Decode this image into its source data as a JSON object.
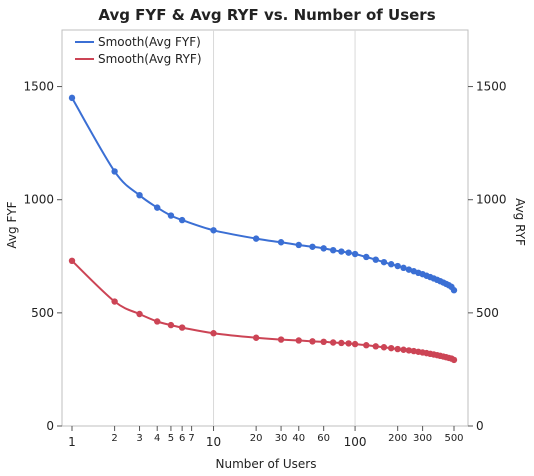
{
  "chart_data": {
    "type": "line",
    "title": "Avg FYF & Avg RYF vs. Number of Users",
    "xlabel": "Number of Users",
    "ylabel_left": "Avg FYF",
    "ylabel_right": "Avg RYF",
    "x_scale": "log",
    "xlim": [
      1,
      500
    ],
    "ylim": [
      0,
      1750
    ],
    "y_ticks": [
      0,
      500,
      1000,
      1500
    ],
    "x_ticks": [
      1,
      2,
      3,
      4,
      5,
      6,
      7,
      10,
      20,
      30,
      40,
      60,
      100,
      200,
      300,
      500
    ],
    "x_tick_labels": [
      "1",
      "2",
      "3",
      "4",
      "5",
      "6",
      "7",
      "10",
      "20",
      "30",
      "40",
      "60",
      "100",
      "200",
      "300",
      "500"
    ],
    "grid": "vertical lines at 10 and 100",
    "legend_position": "top-left",
    "x": [
      1,
      2,
      3,
      4,
      5,
      6,
      10,
      20,
      30,
      40,
      50,
      60,
      70,
      80,
      90,
      100,
      120,
      140,
      160,
      180,
      200,
      220,
      240,
      260,
      280,
      300,
      320,
      340,
      360,
      380,
      400,
      420,
      440,
      460,
      480,
      500
    ],
    "series": [
      {
        "name": "Smooth(Avg FYF)",
        "color": "#3b6fd4",
        "values": [
          1450,
          1125,
          1020,
          965,
          930,
          910,
          865,
          828,
          812,
          800,
          792,
          785,
          777,
          771,
          766,
          760,
          747,
          735,
          724,
          715,
          707,
          699,
          691,
          684,
          677,
          671,
          664,
          658,
          652,
          646,
          640,
          634,
          628,
          622,
          615,
          600
        ]
      },
      {
        "name": "Smooth(Avg RYF)",
        "color": "#cc4455",
        "values": [
          730,
          550,
          495,
          462,
          446,
          435,
          410,
          390,
          382,
          378,
          374,
          372,
          369,
          367,
          365,
          362,
          357,
          352,
          348,
          344,
          340,
          337,
          334,
          331,
          328,
          325,
          322,
          319,
          316,
          313,
          310,
          307,
          304,
          301,
          298,
          292
        ]
      }
    ]
  }
}
